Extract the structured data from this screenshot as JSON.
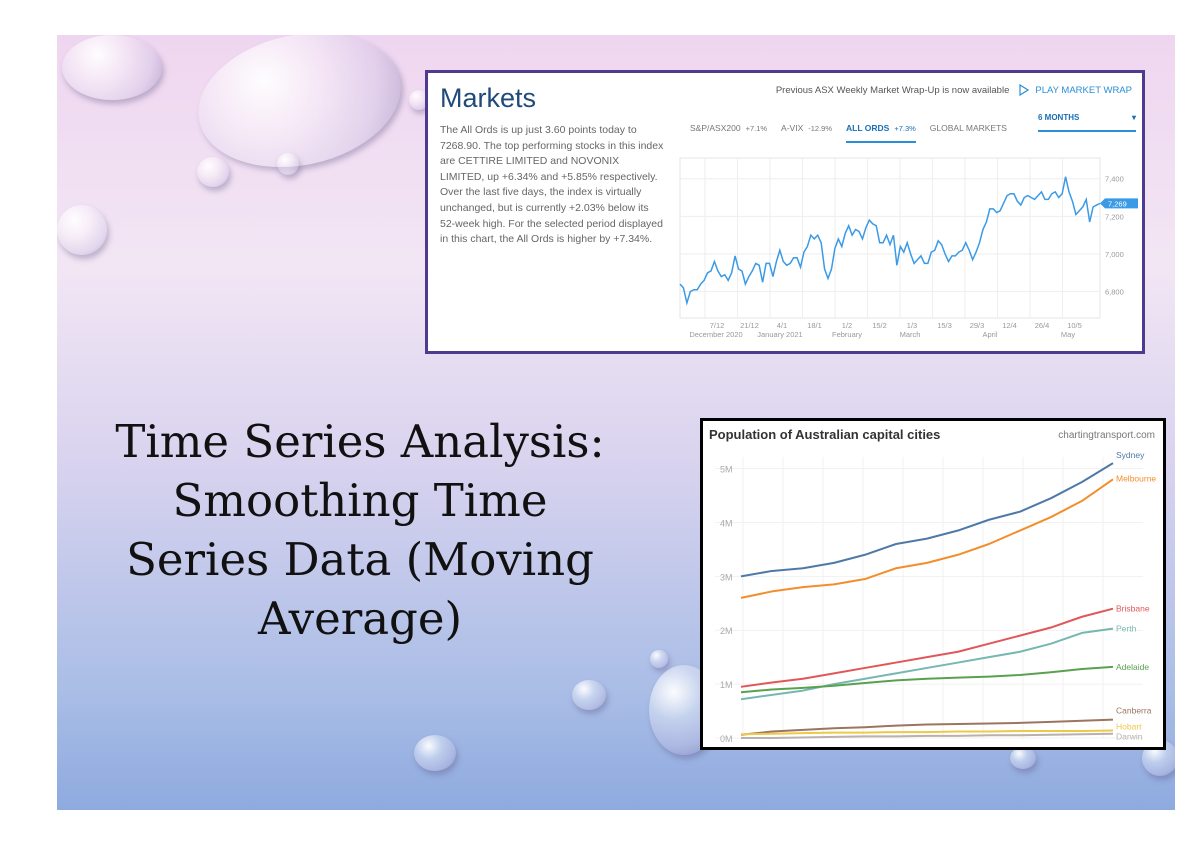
{
  "slide": {
    "title_lines": [
      "Time Series Analysis:",
      "Smoothing Time",
      "Series Data (Moving",
      "Average)"
    ]
  },
  "markets": {
    "title": "Markets",
    "description": "The All Ords is up just 3.60 points today to 7268.90. The top performing stocks in this index are CETTIRE LIMITED and NOVONIX LIMITED, up +6.34% and +5.85% respectively. Over the last five days, the index is virtually unchanged, but is currently +2.03% below its 52-week high. For the selected period displayed in this chart, the All Ords is higher by +7.34%.",
    "wrap_notice": "Previous ASX Weekly Market Wrap-Up is now available",
    "play_label": "PLAY MARKET WRAP",
    "play_icon": "play-outline-icon",
    "tabs": [
      {
        "label": "S&P/ASX200",
        "change": "+7.1%",
        "active": false
      },
      {
        "label": "A-VIX",
        "change": "-12.9%",
        "active": false
      },
      {
        "label": "ALL ORDS",
        "change": "+7.3%",
        "active": true
      },
      {
        "label": "GLOBAL MARKETS",
        "change": "",
        "active": false
      }
    ],
    "period": "6 MONTHS",
    "accent": "#2a8fd6",
    "border_color": "#4e3a8e"
  },
  "population": {
    "title": "Population of Australian capital cities",
    "source": "chartingtransport.com"
  },
  "chart_data": [
    {
      "type": "line",
      "title": "",
      "ylim": [
        6660,
        7510
      ],
      "yticks": [
        "6,800",
        "7,000",
        "7,200",
        "7,400"
      ],
      "ytick_values": [
        6800,
        7000,
        7200,
        7400
      ],
      "xticks": [
        "7/12",
        "21/12",
        "4/1",
        "18/1",
        "1/2",
        "15/2",
        "1/3",
        "15/3",
        "29/3",
        "12/4",
        "26/4",
        "10/5"
      ],
      "month_labels": [
        "December 2020",
        "January 2021",
        "February",
        "March",
        "April",
        "May"
      ],
      "last_value_label": "7,269",
      "grid": true,
      "series": [
        {
          "color": "#3b9ae6",
          "values": [
            6840,
            6820,
            6740,
            6800,
            6810,
            6810,
            6840,
            6860,
            6900,
            6910,
            6960,
            6910,
            6880,
            6890,
            6860,
            6900,
            6990,
            6920,
            6910,
            6840,
            6880,
            6910,
            6950,
            6940,
            6850,
            6950,
            6950,
            6880,
            6960,
            7020,
            6960,
            6940,
            6950,
            6980,
            6980,
            6930,
            7010,
            7040,
            7100,
            7080,
            7100,
            7060,
            6920,
            6870,
            6920,
            7030,
            7080,
            7040,
            7110,
            7150,
            7100,
            7130,
            7120,
            7080,
            7140,
            7180,
            7160,
            7150,
            7060,
            7060,
            7100,
            7050,
            7100,
            6940,
            7040,
            7010,
            7060,
            7000,
            6950,
            6970,
            6990,
            6950,
            6950,
            7010,
            7020,
            7070,
            7050,
            7000,
            6960,
            6990,
            6990,
            7010,
            7020,
            7060,
            7020,
            6970,
            7010,
            7060,
            7130,
            7170,
            7240,
            7240,
            7220,
            7230,
            7270,
            7310,
            7320,
            7320,
            7280,
            7260,
            7300,
            7310,
            7300,
            7290,
            7310,
            7330,
            7290,
            7290,
            7320,
            7330,
            7300,
            7320,
            7410,
            7330,
            7280,
            7210,
            7230,
            7250,
            7290,
            7170,
            7250,
            7260,
            7269
          ]
        }
      ]
    },
    {
      "type": "line",
      "title": "Population of Australian capital cities",
      "ylim": [
        0,
        5.4
      ],
      "yticks": [
        "0M",
        "1M",
        "2M",
        "3M",
        "4M",
        "5M"
      ],
      "ytick_values": [
        0,
        1,
        2,
        3,
        4,
        5
      ],
      "grid": true,
      "legend": "inline-right",
      "series": [
        {
          "name": "Sydney",
          "color": "#4e79a7",
          "values": [
            3.0,
            3.1,
            3.15,
            3.25,
            3.4,
            3.6,
            3.7,
            3.85,
            4.05,
            4.2,
            4.45,
            4.75,
            5.1
          ]
        },
        {
          "name": "Melbourne",
          "color": "#f28e2b",
          "values": [
            2.6,
            2.72,
            2.8,
            2.85,
            2.95,
            3.15,
            3.25,
            3.4,
            3.6,
            3.85,
            4.1,
            4.4,
            4.8
          ]
        },
        {
          "name": "Brisbane",
          "color": "#e15759",
          "values": [
            0.95,
            1.03,
            1.1,
            1.2,
            1.3,
            1.4,
            1.5,
            1.6,
            1.75,
            1.9,
            2.05,
            2.25,
            2.4
          ]
        },
        {
          "name": "Perth",
          "color": "#76b7b2",
          "values": [
            0.72,
            0.8,
            0.88,
            1.0,
            1.1,
            1.2,
            1.3,
            1.4,
            1.5,
            1.6,
            1.75,
            1.95,
            2.03
          ]
        },
        {
          "name": "Adelaide",
          "color": "#59a14f",
          "values": [
            0.85,
            0.9,
            0.93,
            0.97,
            1.02,
            1.07,
            1.1,
            1.12,
            1.14,
            1.17,
            1.22,
            1.28,
            1.32
          ]
        },
        {
          "name": "Canberra",
          "color": "#9c755f",
          "values": [
            0.06,
            0.12,
            0.15,
            0.18,
            0.2,
            0.23,
            0.25,
            0.26,
            0.27,
            0.28,
            0.3,
            0.32,
            0.34
          ]
        },
        {
          "name": "Hobart",
          "color": "#edc948",
          "values": [
            0.07,
            0.08,
            0.09,
            0.1,
            0.1,
            0.11,
            0.11,
            0.12,
            0.12,
            0.13,
            0.13,
            0.13,
            0.14
          ]
        },
        {
          "name": "Darwin",
          "color": "#bab0ac",
          "values": [
            0.0,
            0.0,
            0.01,
            0.02,
            0.03,
            0.03,
            0.04,
            0.04,
            0.05,
            0.05,
            0.06,
            0.07,
            0.08
          ]
        }
      ]
    }
  ]
}
